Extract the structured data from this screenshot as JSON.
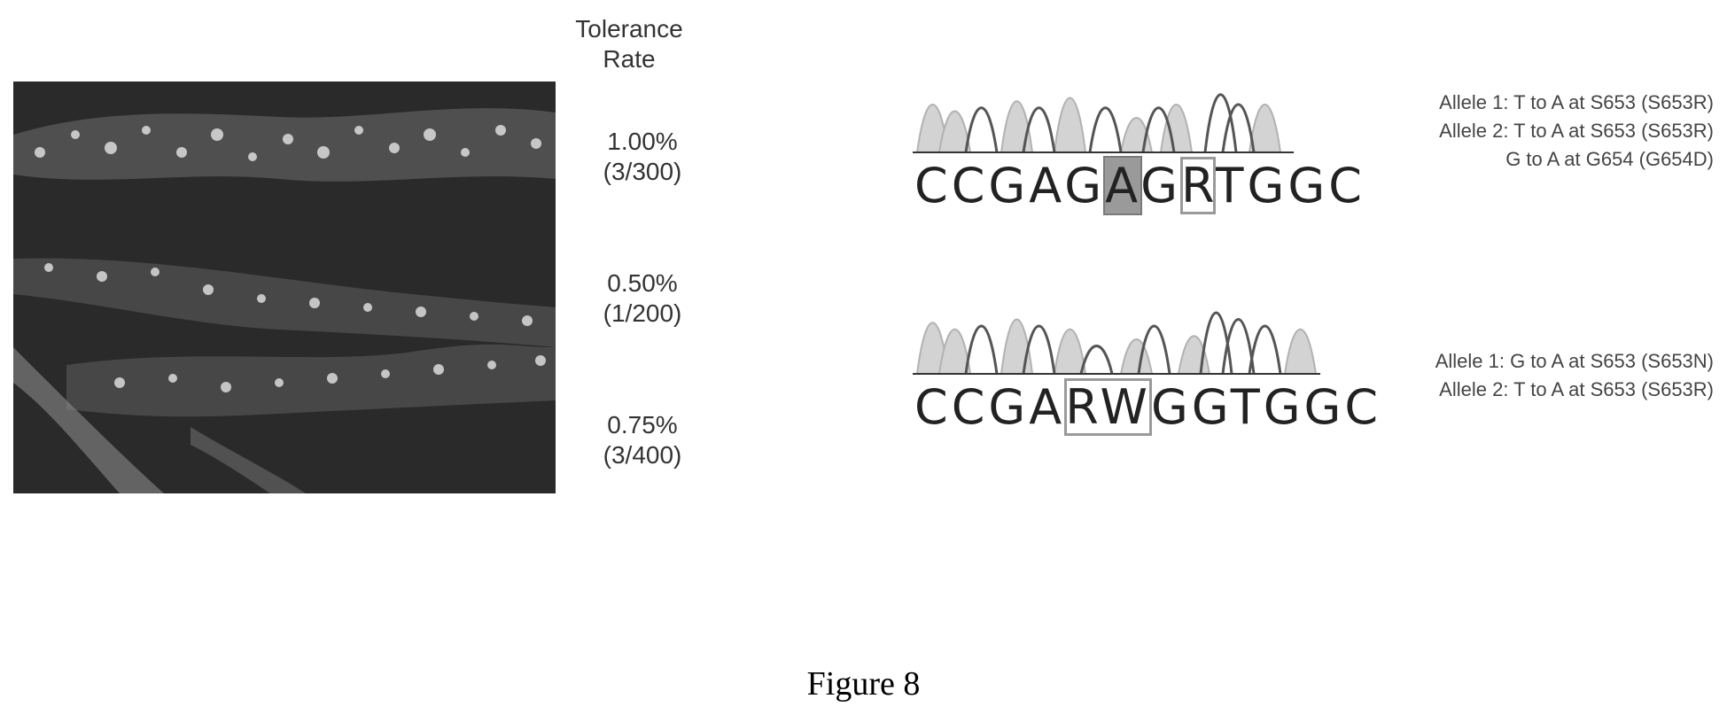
{
  "tolerance_header": "Tolerance Rate",
  "rates": [
    {
      "percent": "1.00%",
      "fraction": "(3/300)"
    },
    {
      "percent": "0.50%",
      "fraction": "(1/200)"
    },
    {
      "percent": "0.75%",
      "fraction": "(3/400)"
    }
  ],
  "sequence_top": {
    "prefix": "CCGAG",
    "highlight_fill": "A",
    "mid": "G",
    "highlight_box": "R",
    "suffix": "TGGC"
  },
  "sequence_bottom": {
    "prefix": "CCGA",
    "highlight_box": "RW",
    "suffix": "GGTGGC"
  },
  "alleles_top": [
    "Allele 1: T to A at S653 (S653R)",
    "Allele 2: T to A at S653 (S653R)",
    "G to A at G654 (G654D)"
  ],
  "alleles_bottom": [
    "Allele 1: G to A at S653 (S653N)",
    "Allele 2:  T to A at S653 (S653R)"
  ],
  "caption": "Figure 8"
}
